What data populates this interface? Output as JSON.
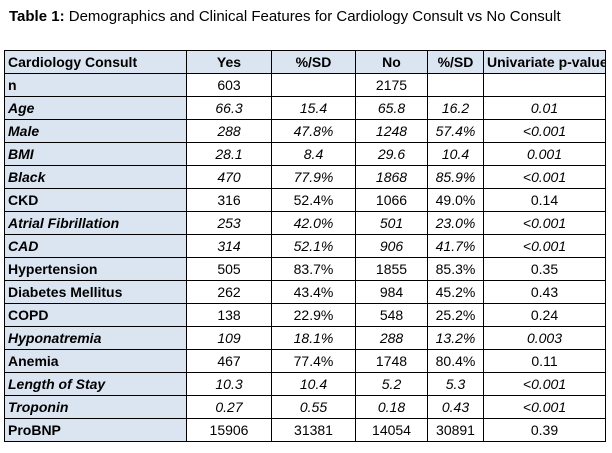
{
  "caption": {
    "label": "Table 1:",
    "text": " Demographics and Clinical Features for Cardiology Consult vs No Consult"
  },
  "table": {
    "columns": [
      "Cardiology Consult",
      "Yes",
      "%/SD",
      "No",
      "%/SD",
      "Univariate p-value"
    ],
    "rows": [
      {
        "label": "n",
        "italic": false,
        "cells": [
          "603",
          "",
          "2175",
          "",
          ""
        ]
      },
      {
        "label": "Age",
        "italic": true,
        "cells": [
          "66.3",
          "15.4",
          "65.8",
          "16.2",
          "0.01"
        ]
      },
      {
        "label": "Male",
        "italic": true,
        "cells": [
          "288",
          "47.8%",
          "1248",
          "57.4%",
          "<0.001"
        ]
      },
      {
        "label": "BMI",
        "italic": true,
        "cells": [
          "28.1",
          "8.4",
          "29.6",
          "10.4",
          "0.001"
        ]
      },
      {
        "label": "Black",
        "italic": true,
        "cells": [
          "470",
          "77.9%",
          "1868",
          "85.9%",
          "<0.001"
        ]
      },
      {
        "label": "CKD",
        "italic": false,
        "cells": [
          "316",
          "52.4%",
          "1066",
          "49.0%",
          "0.14"
        ]
      },
      {
        "label": "Atrial Fibrillation",
        "italic": true,
        "cells": [
          "253",
          "42.0%",
          "501",
          "23.0%",
          "<0.001"
        ]
      },
      {
        "label": "CAD",
        "italic": true,
        "cells": [
          "314",
          "52.1%",
          "906",
          "41.7%",
          "<0.001"
        ]
      },
      {
        "label": "Hypertension",
        "italic": false,
        "cells": [
          "505",
          "83.7%",
          "1855",
          "85.3%",
          "0.35"
        ]
      },
      {
        "label": "Diabetes Mellitus",
        "italic": false,
        "cells": [
          "262",
          "43.4%",
          "984",
          "45.2%",
          "0.43"
        ]
      },
      {
        "label": "COPD",
        "italic": false,
        "cells": [
          "138",
          "22.9%",
          "548",
          "25.2%",
          "0.24"
        ]
      },
      {
        "label": "Hyponatremia",
        "italic": true,
        "cells": [
          "109",
          "18.1%",
          "288",
          "13.2%",
          "0.003"
        ]
      },
      {
        "label": "Anemia",
        "italic": false,
        "cells": [
          "467",
          "77.4%",
          "1748",
          "80.4%",
          "0.11"
        ]
      },
      {
        "label": "Length of Stay",
        "italic": true,
        "cells": [
          "10.3",
          "10.4",
          "5.2",
          "5.3",
          "<0.001"
        ]
      },
      {
        "label": "Troponin",
        "italic": true,
        "cells": [
          "0.27",
          "0.55",
          "0.18",
          "0.43",
          "<0.001"
        ]
      },
      {
        "label": "ProBNP",
        "italic": false,
        "cells": [
          "15906",
          "31381",
          "14054",
          "30891",
          "0.39"
        ]
      }
    ]
  },
  "colors": {
    "header_background": "#dbe5f1",
    "border": "#000000"
  }
}
